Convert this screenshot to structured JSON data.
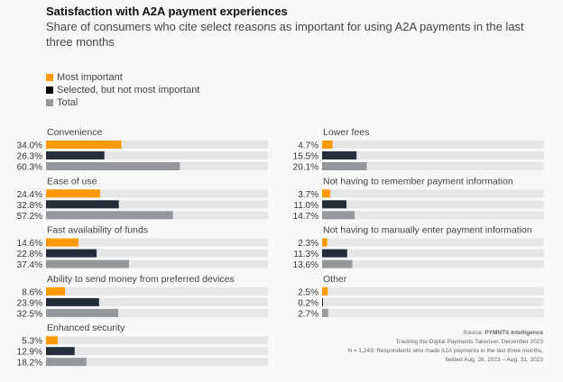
{
  "chart_data": {
    "type": "bar",
    "orientation": "horizontal",
    "title": "Satisfaction with A2A payment experiences",
    "subtitle": "Share of consumers who cite select reasons as important for using A2A payments in the last three months",
    "xlim": [
      0,
      100
    ],
    "unit": "%",
    "legend_position": "top-left",
    "series": [
      {
        "name": "Most important",
        "color": "#ff9900"
      },
      {
        "name": "Selected, but not most important",
        "color": "#252d3d"
      },
      {
        "name": "Total",
        "color": "#94979c"
      }
    ],
    "track_color": "#e5e6e8",
    "categories": [
      {
        "label": "Convenience",
        "values": [
          34.0,
          26.3,
          60.3
        ],
        "column": "left"
      },
      {
        "label": "Ease of use",
        "values": [
          24.4,
          32.8,
          57.2
        ],
        "column": "left"
      },
      {
        "label": "Fast availability of funds",
        "values": [
          14.6,
          22.8,
          37.4
        ],
        "column": "left"
      },
      {
        "label": "Ability to send money from preferred devices",
        "values": [
          8.6,
          23.9,
          32.5
        ],
        "column": "left"
      },
      {
        "label": "Enhanced security",
        "values": [
          5.3,
          12.9,
          18.2
        ],
        "column": "left"
      },
      {
        "label": "Lower fees",
        "values": [
          4.7,
          15.5,
          20.1
        ],
        "column": "right"
      },
      {
        "label": "Not having to remember payment information",
        "values": [
          3.7,
          11.0,
          14.7
        ],
        "column": "right"
      },
      {
        "label": "Not having to manually enter payment information",
        "values": [
          2.3,
          11.3,
          13.6
        ],
        "column": "right"
      },
      {
        "label": "Other",
        "values": [
          2.5,
          0.2,
          2.7
        ],
        "column": "right"
      }
    ]
  },
  "source": {
    "label": "Source: ",
    "name": "PYMNTS Intelligence",
    "line2": "Tracking the Digital Payments Takeover, December 2023",
    "line3": "N = 1,243: Respondents who made A2A payments in the last three months,",
    "line4": "fielded Aug. 26, 2023 – Aug. 31, 2023"
  }
}
